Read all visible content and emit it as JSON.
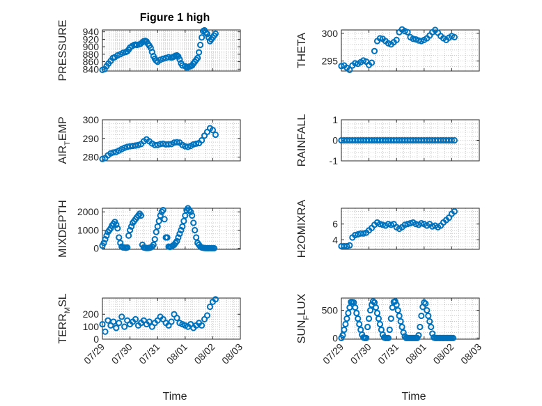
{
  "figure_title": "Figure 1 high",
  "chart_data": [
    {
      "type": "scatter",
      "title": "Figure 1 high",
      "ylabel": "PRESSURE",
      "xlim": [
        "07/29",
        "08/03"
      ],
      "ylim": [
        835,
        945
      ],
      "yticks": [
        840,
        860,
        880,
        900,
        920,
        940
      ],
      "xtick_labels": [
        "",
        "",
        "",
        "",
        "",
        ""
      ],
      "grid": true,
      "x": [
        0.0,
        0.08,
        0.15,
        0.22,
        0.3,
        0.38,
        0.45,
        0.55,
        0.65,
        0.75,
        0.85,
        0.9,
        0.95,
        1.0,
        1.08,
        1.15,
        1.2,
        1.25,
        1.32,
        1.38,
        1.45,
        1.5,
        1.55,
        1.6,
        1.65,
        1.7,
        1.75,
        1.8,
        1.85,
        1.9,
        1.95,
        2.0,
        2.1,
        2.2,
        2.3,
        2.4,
        2.5,
        2.55,
        2.6,
        2.65,
        2.7,
        2.75,
        2.8,
        2.85,
        2.9,
        3.0,
        3.05,
        3.1,
        3.15,
        3.2,
        3.25,
        3.3,
        3.35,
        3.4,
        3.45,
        3.5,
        3.55,
        3.6,
        3.65,
        3.7,
        3.75,
        3.8,
        3.85,
        3.9,
        3.95,
        4.0,
        4.05,
        4.1
      ],
      "y": [
        838,
        840,
        848,
        855,
        862,
        870,
        872,
        877,
        880,
        884,
        886,
        888,
        892,
        898,
        902,
        905,
        906,
        905,
        906,
        908,
        912,
        915,
        916,
        914,
        908,
        903,
        897,
        886,
        875,
        868,
        863,
        860,
        865,
        868,
        870,
        872,
        871,
        872,
        874,
        876,
        877,
        874,
        866,
        856,
        850,
        848,
        845,
        845,
        847,
        848,
        850,
        855,
        860,
        865,
        870,
        885,
        905,
        925,
        942,
        944,
        938,
        934,
        925,
        915,
        920,
        925,
        930,
        935
      ]
    },
    {
      "type": "scatter",
      "ylabel": "THETA",
      "xlim": [
        "07/29",
        "08/03"
      ],
      "ylim": [
        293.2,
        300.6
      ],
      "yticks": [
        295,
        300
      ],
      "xtick_labels": [
        "",
        "",
        "",
        "",
        "",
        ""
      ],
      "grid": true,
      "x": [
        0.0,
        0.1,
        0.2,
        0.3,
        0.4,
        0.5,
        0.6,
        0.7,
        0.8,
        0.9,
        1.0,
        1.1,
        1.2,
        1.3,
        1.4,
        1.5,
        1.6,
        1.7,
        1.8,
        1.9,
        2.0,
        2.1,
        2.2,
        2.3,
        2.4,
        2.5,
        2.6,
        2.7,
        2.8,
        2.9,
        3.0,
        3.1,
        3.2,
        3.3,
        3.4,
        3.5,
        3.6,
        3.7,
        3.8,
        3.9,
        4.0,
        4.1
      ],
      "y": [
        294.1,
        294.2,
        293.8,
        293.4,
        294.2,
        294.6,
        294.5,
        294.8,
        295.1,
        294.9,
        294.3,
        294.7,
        296.8,
        298.6,
        299.1,
        299.0,
        298.6,
        298.2,
        298.0,
        298.4,
        298.8,
        300.2,
        300.7,
        300.4,
        300.2,
        299.3,
        299.0,
        298.9,
        298.7,
        298.6,
        298.8,
        299.1,
        299.6,
        300.2,
        300.6,
        300.1,
        299.5,
        299.1,
        298.8,
        299.2,
        299.5,
        299.3
      ]
    },
    {
      "type": "scatter",
      "ylabel": "AIR_TEMP",
      "xlim": [
        "07/29",
        "08/03"
      ],
      "ylim": [
        278,
        300
      ],
      "yticks": [
        280,
        290,
        300
      ],
      "xtick_labels": [
        "",
        "",
        "",
        "",
        "",
        ""
      ],
      "grid": true,
      "x": [
        0.0,
        0.1,
        0.2,
        0.3,
        0.4,
        0.5,
        0.6,
        0.7,
        0.8,
        0.9,
        1.0,
        1.1,
        1.2,
        1.3,
        1.4,
        1.5,
        1.6,
        1.7,
        1.8,
        1.9,
        2.0,
        2.1,
        2.2,
        2.3,
        2.4,
        2.5,
        2.6,
        2.7,
        2.8,
        2.9,
        3.0,
        3.1,
        3.2,
        3.3,
        3.4,
        3.5,
        3.6,
        3.7,
        3.8,
        3.9,
        4.0,
        4.1
      ],
      "y": [
        279.0,
        279.5,
        281.0,
        282.0,
        282.5,
        282.8,
        283.5,
        284.3,
        285.0,
        285.5,
        285.8,
        286.0,
        286.2,
        286.5,
        287.0,
        288.5,
        289.5,
        288.5,
        287.3,
        286.5,
        286.5,
        287.0,
        287.2,
        286.8,
        286.9,
        287.0,
        287.8,
        288.0,
        287.8,
        286.5,
        285.8,
        285.5,
        286.0,
        286.8,
        287.2,
        287.5,
        289.0,
        291.5,
        293.5,
        295.5,
        294.5,
        292.0
      ]
    },
    {
      "type": "scatter",
      "ylabel": "RAINFALL",
      "xlim": [
        "07/29",
        "08/03"
      ],
      "ylim": [
        -1,
        1
      ],
      "yticks": [
        -1,
        0,
        1
      ],
      "xtick_labels": [
        "",
        "",
        "",
        "",
        "",
        ""
      ],
      "grid": true,
      "x": [
        0.0,
        0.1,
        0.2,
        0.3,
        0.4,
        0.5,
        0.6,
        0.7,
        0.8,
        0.9,
        1.0,
        1.1,
        1.2,
        1.3,
        1.4,
        1.5,
        1.6,
        1.7,
        1.8,
        1.9,
        2.0,
        2.1,
        2.2,
        2.3,
        2.4,
        2.5,
        2.6,
        2.7,
        2.8,
        2.9,
        3.0,
        3.1,
        3.2,
        3.3,
        3.4,
        3.5,
        3.6,
        3.7,
        3.8,
        3.9,
        4.0,
        4.1
      ],
      "y": [
        0,
        0,
        0,
        0,
        0,
        0,
        0,
        0,
        0,
        0,
        0,
        0,
        0,
        0,
        0,
        0,
        0,
        0,
        0,
        0,
        0,
        0,
        0,
        0,
        0,
        0,
        0,
        0,
        0,
        0,
        0,
        0,
        0,
        0,
        0,
        0,
        0,
        0,
        0,
        0,
        0,
        0
      ]
    },
    {
      "type": "scatter",
      "ylabel": "MIXDEPTH",
      "xlim": [
        "07/29",
        "08/03"
      ],
      "ylim": [
        -50,
        2200
      ],
      "yticks": [
        0,
        1000,
        2000
      ],
      "xtick_labels": [
        "",
        "",
        "",
        "",
        "",
        ""
      ],
      "grid": true,
      "x": [
        0.0,
        0.05,
        0.1,
        0.15,
        0.2,
        0.25,
        0.3,
        0.35,
        0.4,
        0.45,
        0.5,
        0.55,
        0.6,
        0.65,
        0.7,
        0.75,
        0.8,
        0.85,
        0.9,
        0.95,
        1.0,
        1.05,
        1.1,
        1.15,
        1.2,
        1.25,
        1.3,
        1.35,
        1.4,
        1.45,
        1.5,
        1.55,
        1.6,
        1.65,
        1.7,
        1.75,
        1.8,
        1.85,
        1.9,
        1.95,
        2.0,
        2.05,
        2.1,
        2.15,
        2.2,
        2.25,
        2.3,
        2.35,
        2.4,
        2.45,
        2.5,
        2.55,
        2.6,
        2.65,
        2.7,
        2.75,
        2.8,
        2.85,
        2.9,
        2.95,
        3.0,
        3.05,
        3.1,
        3.15,
        3.2,
        3.25,
        3.3,
        3.35,
        3.4,
        3.45,
        3.5,
        3.55,
        3.6,
        3.65,
        3.7,
        3.75,
        3.8,
        3.85,
        3.9,
        3.95,
        4.0,
        4.05
      ],
      "y": [
        150,
        300,
        500,
        700,
        900,
        1000,
        1100,
        1250,
        1350,
        1450,
        1300,
        1100,
        600,
        300,
        100,
        50,
        50,
        30,
        50,
        700,
        1000,
        1200,
        1400,
        1500,
        1600,
        1700,
        1800,
        1900,
        1800,
        200,
        50,
        30,
        20,
        20,
        30,
        50,
        100,
        200,
        500,
        900,
        1200,
        1500,
        1800,
        2000,
        2100,
        1600,
        600,
        600,
        100,
        80,
        100,
        150,
        200,
        300,
        400,
        600,
        800,
        1000,
        1200,
        1500,
        1800,
        2100,
        2200,
        2100,
        2000,
        1800,
        1400,
        1000,
        600,
        300,
        200,
        100,
        50,
        30,
        20,
        10,
        10,
        10,
        10,
        10,
        10,
        10
      ]
    },
    {
      "type": "scatter",
      "ylabel": "H2OMIXRA",
      "xlim": [
        "07/29",
        "08/03"
      ],
      "ylim": [
        2.8,
        8
      ],
      "yticks": [
        4,
        6
      ],
      "xtick_labels": [
        "",
        "",
        "",
        "",
        "",
        ""
      ],
      "grid": true,
      "x": [
        0.0,
        0.1,
        0.2,
        0.3,
        0.4,
        0.5,
        0.6,
        0.7,
        0.8,
        0.9,
        1.0,
        1.1,
        1.2,
        1.3,
        1.4,
        1.5,
        1.6,
        1.7,
        1.8,
        1.9,
        2.0,
        2.1,
        2.2,
        2.3,
        2.4,
        2.5,
        2.6,
        2.7,
        2.8,
        2.9,
        3.0,
        3.1,
        3.2,
        3.3,
        3.4,
        3.5,
        3.6,
        3.7,
        3.8,
        3.9,
        4.0,
        4.1
      ],
      "y": [
        3.2,
        3.2,
        3.2,
        3.3,
        4.3,
        4.6,
        4.7,
        4.8,
        4.8,
        4.9,
        5.2,
        5.5,
        5.9,
        6.2,
        6.0,
        5.9,
        5.8,
        6.0,
        5.9,
        6.0,
        5.6,
        5.4,
        5.6,
        5.9,
        6.0,
        6.1,
        6.2,
        6.0,
        5.9,
        6.1,
        6.0,
        5.8,
        6.0,
        5.7,
        5.8,
        5.6,
        5.8,
        6.2,
        6.5,
        6.8,
        7.3,
        7.6
      ]
    },
    {
      "type": "scatter",
      "ylabel": "TERR_MSL",
      "xlim": [
        "07/29",
        "08/03"
      ],
      "ylim": [
        0,
        330
      ],
      "yticks": [
        0,
        100,
        200
      ],
      "xtick_labels": [
        "07/29",
        "07/30",
        "07/31",
        "08/01",
        "08/02",
        "08/03"
      ],
      "grid": true,
      "x": [
        0.0,
        0.1,
        0.2,
        0.3,
        0.4,
        0.5,
        0.6,
        0.7,
        0.8,
        0.9,
        1.0,
        1.1,
        1.2,
        1.3,
        1.4,
        1.5,
        1.6,
        1.7,
        1.8,
        1.9,
        2.0,
        2.1,
        2.2,
        2.3,
        2.4,
        2.5,
        2.6,
        2.7,
        2.8,
        2.9,
        3.0,
        3.1,
        3.2,
        3.3,
        3.4,
        3.5,
        3.6,
        3.7,
        3.8,
        3.9,
        4.0,
        4.1
      ],
      "y": [
        120,
        60,
        150,
        110,
        140,
        90,
        130,
        180,
        100,
        150,
        120,
        140,
        160,
        110,
        130,
        150,
        120,
        140,
        100,
        130,
        150,
        180,
        160,
        130,
        110,
        140,
        200,
        170,
        130,
        120,
        110,
        100,
        120,
        90,
        110,
        130,
        110,
        160,
        190,
        260,
        300,
        320
      ]
    },
    {
      "type": "scatter",
      "ylabel": "SUN_FLUX",
      "xlim": [
        "07/29",
        "08/03"
      ],
      "ylim": [
        -20,
        720
      ],
      "yticks": [
        0,
        500
      ],
      "xtick_labels": [
        "07/29",
        "07/30",
        "07/31",
        "08/01",
        "08/02",
        "08/03"
      ],
      "grid": true,
      "x": [
        0.0,
        0.05,
        0.1,
        0.15,
        0.2,
        0.25,
        0.3,
        0.35,
        0.4,
        0.45,
        0.5,
        0.55,
        0.6,
        0.65,
        0.7,
        0.75,
        0.8,
        0.85,
        0.9,
        0.95,
        1.0,
        1.05,
        1.1,
        1.15,
        1.2,
        1.25,
        1.3,
        1.35,
        1.4,
        1.45,
        1.5,
        1.55,
        1.6,
        1.65,
        1.7,
        1.75,
        1.8,
        1.85,
        1.9,
        1.95,
        2.0,
        2.05,
        2.1,
        2.15,
        2.2,
        2.25,
        2.3,
        2.35,
        2.4,
        2.45,
        2.5,
        2.55,
        2.6,
        2.65,
        2.7,
        2.75,
        2.8,
        2.85,
        2.9,
        2.95,
        3.0,
        3.05,
        3.1,
        3.15,
        3.2,
        3.25,
        3.3,
        3.35,
        3.4,
        3.45,
        3.5,
        3.55,
        3.6,
        3.65,
        3.7,
        3.75,
        3.8,
        3.85,
        3.9,
        3.95,
        4.0,
        4.05
      ],
      "y": [
        0,
        50,
        150,
        250,
        350,
        450,
        550,
        650,
        650,
        640,
        550,
        450,
        350,
        250,
        150,
        60,
        10,
        0,
        0,
        200,
        350,
        500,
        600,
        660,
        640,
        550,
        450,
        350,
        250,
        150,
        60,
        10,
        0,
        0,
        0,
        150,
        350,
        550,
        650,
        660,
        600,
        500,
        400,
        300,
        200,
        100,
        30,
        0,
        0,
        0,
        0,
        0,
        0,
        0,
        0,
        0,
        50,
        200,
        400,
        560,
        640,
        620,
        500,
        400,
        300,
        200,
        80,
        10,
        0,
        0,
        0,
        0,
        0,
        0,
        0,
        0,
        0,
        0,
        0,
        0,
        0,
        0
      ]
    }
  ],
  "xlabel_bottom": [
    "Time",
    "Time"
  ]
}
